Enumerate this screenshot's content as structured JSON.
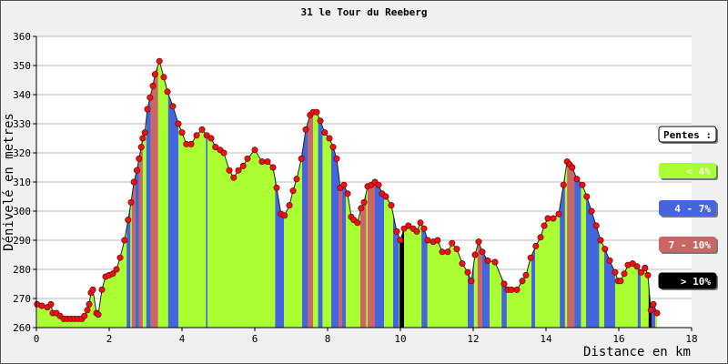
{
  "chart_data": {
    "type": "area",
    "title": "31 le Tour du Reeberg",
    "xlabel": "Distance en km",
    "ylabel": "Dénivelé en metres",
    "xlim": [
      0,
      18
    ],
    "ylim": [
      260,
      360
    ],
    "xticks": [
      0,
      2,
      4,
      6,
      8,
      10,
      12,
      14,
      16,
      18
    ],
    "yticks": [
      260,
      270,
      280,
      290,
      300,
      310,
      320,
      330,
      340,
      350,
      360
    ],
    "grid": true,
    "legend": {
      "title": "Pentes :",
      "placement": "right",
      "items": [
        {
          "label": "< 4%",
          "color": "#aaff33",
          "text_color": "#ffffff"
        },
        {
          "label": "4 - 7%",
          "color": "#4466dd",
          "text_color": "#ffffff"
        },
        {
          "label": "7 - 10%",
          "color": "#cc6666",
          "text_color": "#ffffff"
        },
        {
          "label": "> 10%",
          "color": "#000000",
          "text_color": "#ffffff"
        }
      ]
    },
    "colors": {
      "point": "#ee1111",
      "line": "#222222",
      "grid": "#bbbbbb",
      "plot_bg": "#ffffff"
    },
    "profile": [
      [
        0.02,
        268
      ],
      [
        0.15,
        267.5
      ],
      [
        0.3,
        267
      ],
      [
        0.4,
        268
      ],
      [
        0.45,
        265
      ],
      [
        0.55,
        265
      ],
      [
        0.65,
        264
      ],
      [
        0.75,
        263
      ],
      [
        0.85,
        263
      ],
      [
        0.95,
        263
      ],
      [
        1.05,
        263
      ],
      [
        1.15,
        263
      ],
      [
        1.25,
        263
      ],
      [
        1.32,
        264
      ],
      [
        1.4,
        266
      ],
      [
        1.45,
        268
      ],
      [
        1.5,
        272
      ],
      [
        1.55,
        273
      ],
      [
        1.65,
        265
      ],
      [
        1.7,
        264.5
      ],
      [
        1.8,
        273
      ],
      [
        1.9,
        277.5
      ],
      [
        2.0,
        278
      ],
      [
        2.1,
        278.5
      ],
      [
        2.2,
        280
      ],
      [
        2.3,
        284
      ],
      [
        2.42,
        290
      ],
      [
        2.52,
        297
      ],
      [
        2.6,
        303
      ],
      [
        2.68,
        310
      ],
      [
        2.76,
        314
      ],
      [
        2.82,
        318
      ],
      [
        2.88,
        322
      ],
      [
        2.92,
        325
      ],
      [
        2.98,
        327
      ],
      [
        3.05,
        335
      ],
      [
        3.12,
        339
      ],
      [
        3.2,
        343
      ],
      [
        3.26,
        347
      ],
      [
        3.38,
        351.5
      ],
      [
        3.5,
        346
      ],
      [
        3.6,
        341
      ],
      [
        3.75,
        336
      ],
      [
        3.9,
        330
      ],
      [
        4.0,
        327
      ],
      [
        4.12,
        323
      ],
      [
        4.25,
        323
      ],
      [
        4.4,
        326
      ],
      [
        4.55,
        328
      ],
      [
        4.68,
        326
      ],
      [
        4.8,
        325
      ],
      [
        4.92,
        322
      ],
      [
        5.05,
        321
      ],
      [
        5.15,
        320
      ],
      [
        5.3,
        314
      ],
      [
        5.42,
        311.5
      ],
      [
        5.55,
        314
      ],
      [
        5.68,
        315.5
      ],
      [
        5.8,
        318
      ],
      [
        6.0,
        321
      ],
      [
        6.2,
        317
      ],
      [
        6.35,
        317
      ],
      [
        6.5,
        315
      ],
      [
        6.6,
        308
      ],
      [
        6.72,
        299
      ],
      [
        6.82,
        298.5
      ],
      [
        6.95,
        302
      ],
      [
        7.05,
        307
      ],
      [
        7.15,
        311
      ],
      [
        7.28,
        318
      ],
      [
        7.4,
        328
      ],
      [
        7.52,
        333
      ],
      [
        7.6,
        334
      ],
      [
        7.7,
        334
      ],
      [
        7.8,
        331
      ],
      [
        7.92,
        327
      ],
      [
        8.05,
        325
      ],
      [
        8.15,
        322
      ],
      [
        8.25,
        318
      ],
      [
        8.35,
        308
      ],
      [
        8.45,
        309
      ],
      [
        8.55,
        306
      ],
      [
        8.65,
        298
      ],
      [
        8.72,
        297
      ],
      [
        8.82,
        296
      ],
      [
        8.92,
        301
      ],
      [
        9.0,
        303
      ],
      [
        9.1,
        308.5
      ],
      [
        9.2,
        309
      ],
      [
        9.3,
        310
      ],
      [
        9.4,
        309
      ],
      [
        9.5,
        306
      ],
      [
        9.6,
        305
      ],
      [
        9.75,
        302
      ],
      [
        9.9,
        293
      ],
      [
        10.0,
        290
      ],
      [
        10.1,
        294
      ],
      [
        10.22,
        295
      ],
      [
        10.35,
        294
      ],
      [
        10.45,
        293
      ],
      [
        10.55,
        296
      ],
      [
        10.65,
        294
      ],
      [
        10.75,
        290
      ],
      [
        10.9,
        289.5
      ],
      [
        11.02,
        290
      ],
      [
        11.15,
        286
      ],
      [
        11.3,
        286
      ],
      [
        11.42,
        289
      ],
      [
        11.55,
        287
      ],
      [
        11.7,
        282
      ],
      [
        11.85,
        279
      ],
      [
        11.95,
        276
      ],
      [
        12.05,
        285
      ],
      [
        12.15,
        289.5
      ],
      [
        12.25,
        286
      ],
      [
        12.4,
        283
      ],
      [
        12.6,
        282.5
      ],
      [
        12.85,
        275
      ],
      [
        12.95,
        273
      ],
      [
        13.05,
        273
      ],
      [
        13.2,
        273
      ],
      [
        13.35,
        276
      ],
      [
        13.45,
        278
      ],
      [
        13.58,
        284
      ],
      [
        13.72,
        288
      ],
      [
        13.85,
        291
      ],
      [
        13.95,
        295
      ],
      [
        14.05,
        297.5
      ],
      [
        14.2,
        297.5
      ],
      [
        14.35,
        299
      ],
      [
        14.48,
        309
      ],
      [
        14.58,
        317
      ],
      [
        14.65,
        316
      ],
      [
        14.72,
        315
      ],
      [
        14.85,
        311
      ],
      [
        15.0,
        309
      ],
      [
        15.12,
        305
      ],
      [
        15.25,
        300
      ],
      [
        15.38,
        295
      ],
      [
        15.5,
        290
      ],
      [
        15.62,
        287
      ],
      [
        15.75,
        283
      ],
      [
        15.9,
        279
      ],
      [
        15.98,
        276
      ],
      [
        16.05,
        276
      ],
      [
        16.15,
        278.5
      ],
      [
        16.25,
        281.5
      ],
      [
        16.38,
        282
      ],
      [
        16.5,
        281
      ],
      [
        16.62,
        279
      ],
      [
        16.72,
        280.5
      ],
      [
        16.8,
        278
      ],
      [
        16.88,
        266
      ],
      [
        16.95,
        268
      ],
      [
        17.05,
        265
      ]
    ],
    "slope_bands": [
      {
        "from": 2.48,
        "to": 2.58,
        "class": "blue"
      },
      {
        "from": 2.62,
        "to": 2.72,
        "class": "red"
      },
      {
        "from": 2.72,
        "to": 2.82,
        "class": "blue"
      },
      {
        "from": 2.82,
        "to": 2.92,
        "class": "red"
      },
      {
        "from": 3.02,
        "to": 3.14,
        "class": "blue"
      },
      {
        "from": 3.14,
        "to": 3.34,
        "class": "red"
      },
      {
        "from": 3.62,
        "to": 3.9,
        "class": "blue"
      },
      {
        "from": 4.66,
        "to": 4.7,
        "class": "blue"
      },
      {
        "from": 6.56,
        "to": 6.8,
        "class": "blue"
      },
      {
        "from": 7.3,
        "to": 7.46,
        "class": "blue"
      },
      {
        "from": 7.46,
        "to": 7.6,
        "class": "red"
      },
      {
        "from": 7.74,
        "to": 7.86,
        "class": "blue"
      },
      {
        "from": 8.1,
        "to": 8.3,
        "class": "blue"
      },
      {
        "from": 8.3,
        "to": 8.4,
        "class": "red"
      },
      {
        "from": 8.4,
        "to": 8.5,
        "class": "blue"
      },
      {
        "from": 8.9,
        "to": 9.06,
        "class": "red"
      },
      {
        "from": 9.1,
        "to": 9.3,
        "class": "red"
      },
      {
        "from": 9.3,
        "to": 9.55,
        "class": "blue"
      },
      {
        "from": 9.8,
        "to": 9.96,
        "class": "blue"
      },
      {
        "from": 9.98,
        "to": 10.1,
        "class": "black"
      },
      {
        "from": 10.58,
        "to": 10.74,
        "class": "blue"
      },
      {
        "from": 11.85,
        "to": 12.02,
        "class": "blue"
      },
      {
        "from": 12.12,
        "to": 12.25,
        "class": "red"
      },
      {
        "from": 12.25,
        "to": 12.45,
        "class": "blue"
      },
      {
        "from": 12.78,
        "to": 12.92,
        "class": "blue"
      },
      {
        "from": 13.6,
        "to": 13.7,
        "class": "blue"
      },
      {
        "from": 14.38,
        "to": 14.52,
        "class": "blue"
      },
      {
        "from": 14.58,
        "to": 14.78,
        "class": "red"
      },
      {
        "from": 14.78,
        "to": 14.96,
        "class": "blue"
      },
      {
        "from": 15.1,
        "to": 15.46,
        "class": "blue"
      },
      {
        "from": 15.6,
        "to": 15.9,
        "class": "blue"
      },
      {
        "from": 16.52,
        "to": 16.6,
        "class": "blue"
      },
      {
        "from": 16.82,
        "to": 16.9,
        "class": "black"
      },
      {
        "from": 16.9,
        "to": 17.0,
        "class": "blue"
      }
    ]
  }
}
